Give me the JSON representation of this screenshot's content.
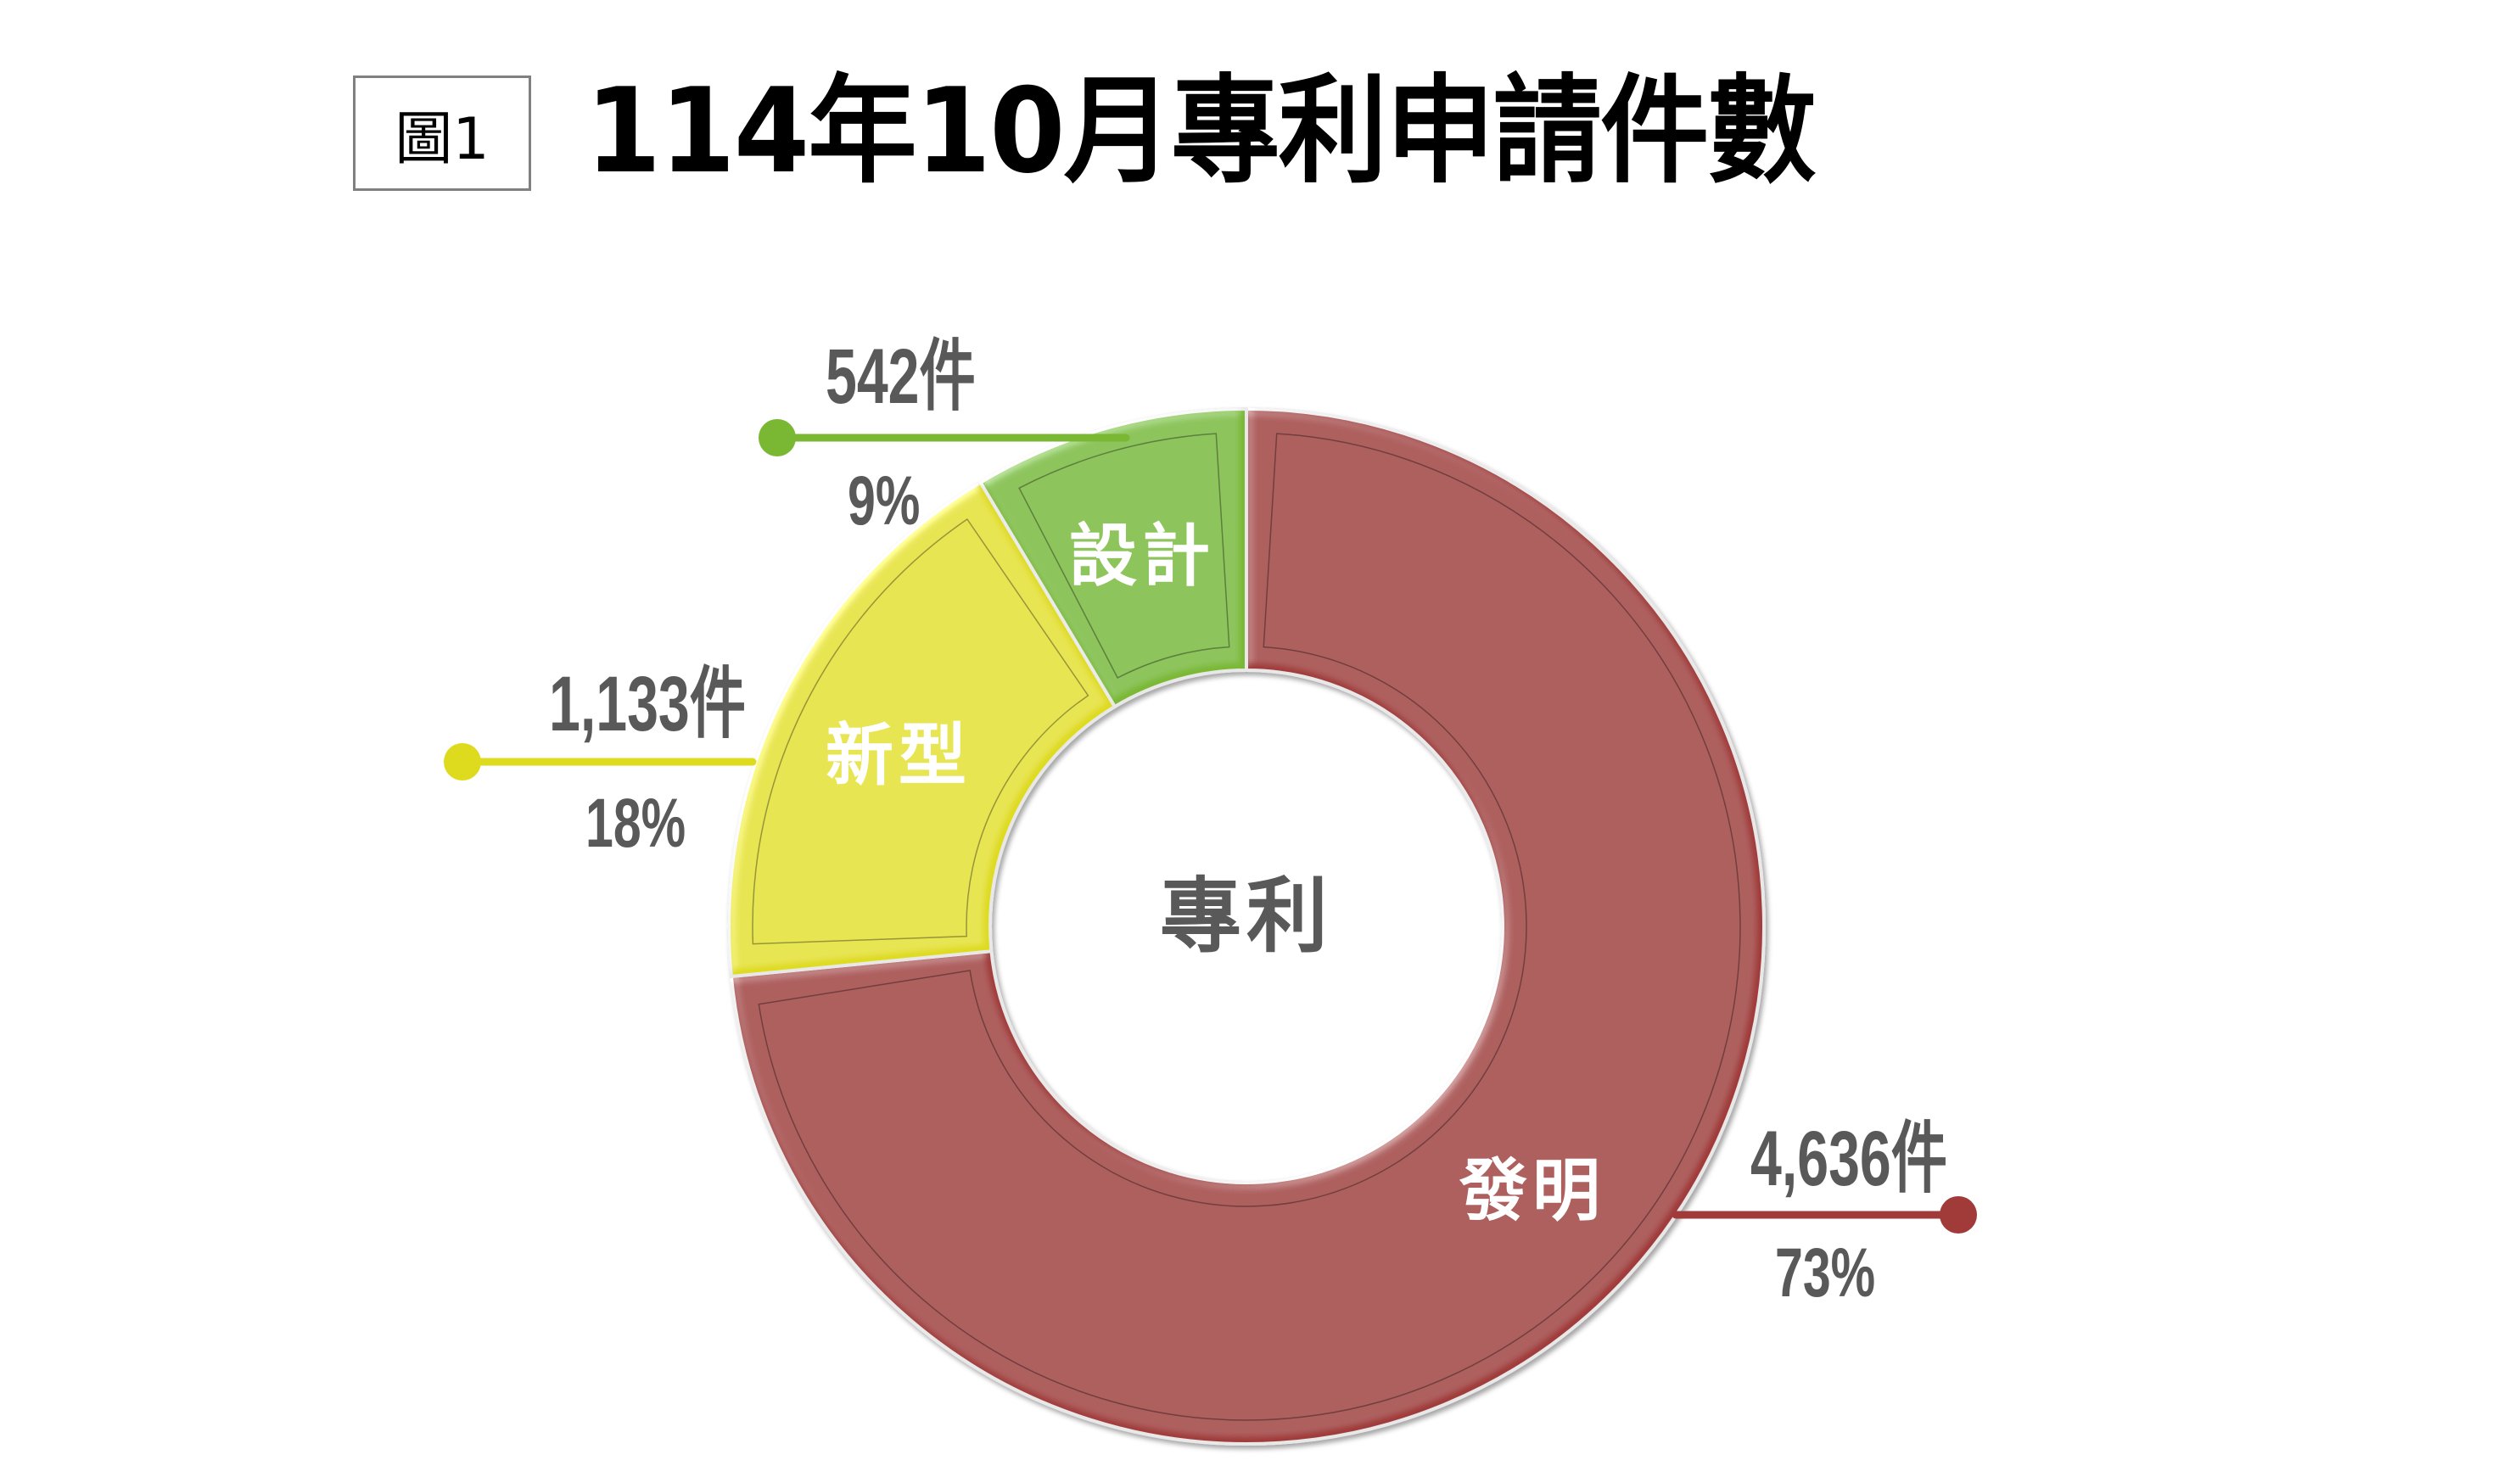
{
  "figure_label": "圖1",
  "title": "114年10月專利申請件數",
  "center_label": "專利",
  "colors": {
    "invention": "#A03B3A",
    "utility_model": "#DEDB1E",
    "design": "#7AB833",
    "label_text": "#595959"
  },
  "segments": [
    {
      "name": "發明",
      "count_label": "4,636件",
      "pct_label": "73%",
      "color": "#A03B3A"
    },
    {
      "name": "新型",
      "count_label": "1,133件",
      "pct_label": "18%",
      "color": "#DEDB1E"
    },
    {
      "name": "設計",
      "count_label": "542件",
      "pct_label": "9%",
      "color": "#7AB833"
    }
  ],
  "chart_data": {
    "type": "pie",
    "subtype": "donut",
    "title": "114年10月專利申請件數",
    "center_label": "專利",
    "categories": [
      "發明",
      "新型",
      "設計"
    ],
    "values": [
      4636,
      1133,
      542
    ],
    "percentages": [
      73,
      18,
      9
    ],
    "unit": "件",
    "colors": [
      "#A03B3A",
      "#DEDB1E",
      "#7AB833"
    ],
    "start_angle": "top (12 o'clock), clockwise",
    "legend": "none (data labels with leader lines)"
  }
}
